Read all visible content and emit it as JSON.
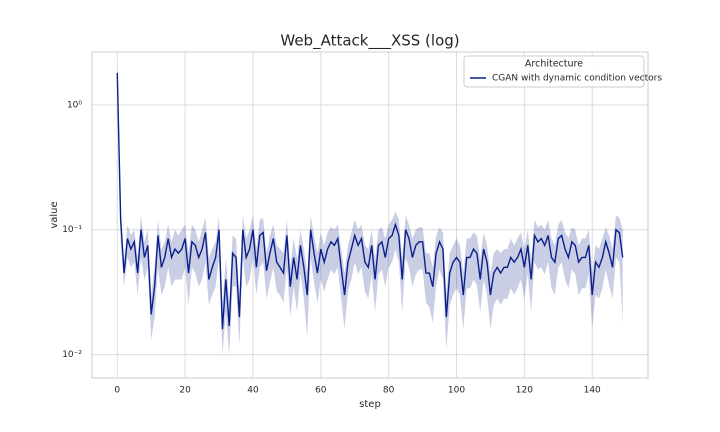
{
  "chart_data": {
    "type": "line",
    "title": "Web_Attack___XSS (log)",
    "x_label": "step",
    "y_label": "value",
    "log_y": true,
    "grid": true,
    "legend_title": "Architecture",
    "legend_position": "upper right",
    "xlim": [
      -7.45,
      156.45
    ],
    "ylim": [
      0.0065,
      2.65
    ],
    "xticks": [
      0,
      20,
      40,
      60,
      80,
      100,
      120,
      140
    ],
    "yticks": [
      {
        "value": 0.01,
        "label": "10⁻²"
      },
      {
        "value": 0.1,
        "label": "10⁻¹"
      },
      {
        "value": 1,
        "label": "10⁰"
      }
    ],
    "x": [
      0,
      1,
      2,
      3,
      4,
      5,
      6,
      7,
      8,
      9,
      10,
      11,
      12,
      13,
      14,
      15,
      16,
      17,
      18,
      19,
      20,
      21,
      22,
      23,
      24,
      25,
      26,
      27,
      28,
      29,
      30,
      31,
      32,
      33,
      34,
      35,
      36,
      37,
      38,
      39,
      40,
      41,
      42,
      43,
      44,
      45,
      46,
      47,
      48,
      49,
      50,
      51,
      52,
      53,
      54,
      55,
      56,
      57,
      58,
      59,
      60,
      61,
      62,
      63,
      64,
      65,
      66,
      67,
      68,
      69,
      70,
      71,
      72,
      73,
      74,
      75,
      76,
      77,
      78,
      79,
      80,
      81,
      82,
      83,
      84,
      85,
      86,
      87,
      88,
      89,
      90,
      91,
      92,
      93,
      94,
      95,
      96,
      97,
      98,
      99,
      100,
      101,
      102,
      103,
      104,
      105,
      106,
      107,
      108,
      109,
      110,
      111,
      112,
      113,
      114,
      115,
      116,
      117,
      118,
      119,
      120,
      121,
      122,
      123,
      124,
      125,
      126,
      127,
      128,
      129,
      130,
      131,
      132,
      133,
      134,
      135,
      136,
      137,
      138,
      139,
      140,
      141,
      142,
      143,
      144,
      145,
      146,
      147,
      148,
      149
    ],
    "series": [
      {
        "name": "CGAN with dynamic condition vectors",
        "color": "#0b1f8a",
        "values": [
          1.8,
          0.12,
          0.045,
          0.085,
          0.07,
          0.08,
          0.045,
          0.1,
          0.06,
          0.075,
          0.021,
          0.035,
          0.09,
          0.05,
          0.06,
          0.085,
          0.06,
          0.07,
          0.065,
          0.07,
          0.085,
          0.045,
          0.08,
          0.075,
          0.06,
          0.07,
          0.095,
          0.04,
          0.05,
          0.06,
          0.1,
          0.016,
          0.04,
          0.017,
          0.065,
          0.06,
          0.02,
          0.1,
          0.06,
          0.07,
          0.1,
          0.05,
          0.09,
          0.095,
          0.047,
          0.065,
          0.085,
          0.055,
          0.05,
          0.045,
          0.09,
          0.035,
          0.06,
          0.04,
          0.075,
          0.05,
          0.03,
          0.1,
          0.065,
          0.045,
          0.07,
          0.055,
          0.07,
          0.08,
          0.075,
          0.085,
          0.05,
          0.03,
          0.055,
          0.07,
          0.09,
          0.075,
          0.085,
          0.055,
          0.05,
          0.075,
          0.04,
          0.075,
          0.08,
          0.06,
          0.085,
          0.09,
          0.11,
          0.09,
          0.04,
          0.1,
          0.085,
          0.06,
          0.075,
          0.08,
          0.08,
          0.045,
          0.045,
          0.035,
          0.065,
          0.08,
          0.07,
          0.02,
          0.045,
          0.055,
          0.06,
          0.055,
          0.03,
          0.06,
          0.06,
          0.07,
          0.065,
          0.04,
          0.07,
          0.055,
          0.03,
          0.045,
          0.05,
          0.045,
          0.05,
          0.05,
          0.06,
          0.055,
          0.06,
          0.07,
          0.05,
          0.075,
          0.04,
          0.09,
          0.08,
          0.085,
          0.075,
          0.09,
          0.06,
          0.055,
          0.085,
          0.09,
          0.07,
          0.06,
          0.08,
          0.075,
          0.055,
          0.06,
          0.06,
          0.075,
          0.03,
          0.055,
          0.05,
          0.06,
          0.08,
          0.065,
          0.05,
          0.1,
          0.095,
          0.06
        ],
        "lower": [
          1.5,
          0.08,
          0.035,
          0.06,
          0.05,
          0.055,
          0.03,
          0.06,
          0.04,
          0.05,
          0.013,
          0.02,
          0.05,
          0.03,
          0.035,
          0.05,
          0.035,
          0.04,
          0.04,
          0.04,
          0.05,
          0.025,
          0.05,
          0.045,
          0.035,
          0.04,
          0.055,
          0.025,
          0.03,
          0.035,
          0.06,
          0.01,
          0.022,
          0.01,
          0.035,
          0.035,
          0.012,
          0.06,
          0.035,
          0.04,
          0.06,
          0.03,
          0.05,
          0.055,
          0.028,
          0.038,
          0.05,
          0.032,
          0.03,
          0.026,
          0.05,
          0.02,
          0.035,
          0.022,
          0.045,
          0.028,
          0.014,
          0.06,
          0.038,
          0.026,
          0.04,
          0.032,
          0.04,
          0.048,
          0.044,
          0.05,
          0.028,
          0.016,
          0.032,
          0.04,
          0.055,
          0.044,
          0.05,
          0.032,
          0.028,
          0.044,
          0.022,
          0.044,
          0.048,
          0.035,
          0.05,
          0.055,
          0.07,
          0.055,
          0.022,
          0.06,
          0.05,
          0.035,
          0.044,
          0.048,
          0.048,
          0.026,
          0.024,
          0.018,
          0.036,
          0.048,
          0.04,
          0.011,
          0.025,
          0.03,
          0.034,
          0.03,
          0.016,
          0.034,
          0.034,
          0.04,
          0.036,
          0.022,
          0.04,
          0.03,
          0.016,
          0.025,
          0.028,
          0.025,
          0.028,
          0.028,
          0.034,
          0.03,
          0.034,
          0.04,
          0.028,
          0.044,
          0.022,
          0.055,
          0.048,
          0.05,
          0.044,
          0.055,
          0.034,
          0.03,
          0.05,
          0.055,
          0.04,
          0.034,
          0.048,
          0.044,
          0.03,
          0.034,
          0.034,
          0.044,
          0.016,
          0.03,
          0.028,
          0.034,
          0.048,
          0.036,
          0.028,
          0.06,
          0.055,
          0.018
        ],
        "upper": [
          2.0,
          0.16,
          0.055,
          0.11,
          0.09,
          0.1,
          0.06,
          0.13,
          0.08,
          0.1,
          0.03,
          0.05,
          0.12,
          0.07,
          0.08,
          0.11,
          0.08,
          0.1,
          0.09,
          0.1,
          0.11,
          0.065,
          0.11,
          0.1,
          0.08,
          0.1,
          0.125,
          0.06,
          0.07,
          0.08,
          0.13,
          0.025,
          0.06,
          0.026,
          0.09,
          0.085,
          0.03,
          0.13,
          0.085,
          0.1,
          0.13,
          0.07,
          0.12,
          0.125,
          0.065,
          0.09,
          0.11,
          0.075,
          0.07,
          0.065,
          0.12,
          0.05,
          0.085,
          0.058,
          0.1,
          0.07,
          0.045,
          0.13,
          0.09,
          0.065,
          0.095,
          0.075,
          0.095,
          0.105,
          0.1,
          0.11,
          0.07,
          0.045,
          0.075,
          0.095,
          0.12,
          0.1,
          0.11,
          0.075,
          0.07,
          0.1,
          0.058,
          0.1,
          0.105,
          0.085,
          0.11,
          0.12,
          0.14,
          0.12,
          0.058,
          0.13,
          0.11,
          0.085,
          0.1,
          0.105,
          0.105,
          0.065,
          0.065,
          0.05,
          0.09,
          0.105,
          0.095,
          0.03,
          0.065,
          0.075,
          0.085,
          0.075,
          0.045,
          0.085,
          0.085,
          0.095,
          0.09,
          0.058,
          0.095,
          0.075,
          0.045,
          0.065,
          0.07,
          0.065,
          0.07,
          0.07,
          0.085,
          0.075,
          0.085,
          0.095,
          0.07,
          0.1,
          0.058,
          0.12,
          0.105,
          0.11,
          0.1,
          0.12,
          0.085,
          0.075,
          0.11,
          0.12,
          0.095,
          0.085,
          0.105,
          0.1,
          0.075,
          0.085,
          0.085,
          0.1,
          0.045,
          0.075,
          0.07,
          0.085,
          0.105,
          0.09,
          0.07,
          0.13,
          0.125,
          0.1
        ]
      }
    ]
  }
}
